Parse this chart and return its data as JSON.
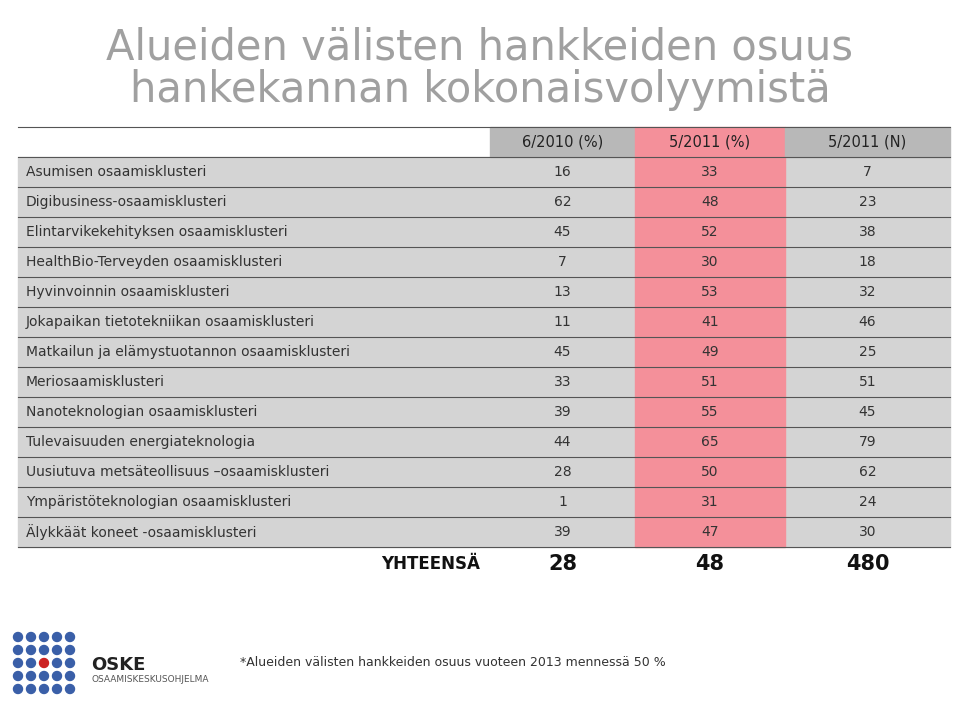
{
  "title_line1": "Alueiden välisten hankkeiden osuus",
  "title_line2": "hankekannan kokonaisvolyymistä",
  "col_headers": [
    "6/2010 (%)",
    "5/2011 (%)",
    "5/2011 (N)"
  ],
  "rows": [
    [
      "Asumisen osaamisklusteri",
      16,
      33,
      7
    ],
    [
      "Digibusiness-osaamisklusteri",
      62,
      48,
      23
    ],
    [
      "Elintarvikekehityksen osaamisklusteri",
      45,
      52,
      38
    ],
    [
      "HealthBio-Terveyden osaamisklusteri",
      7,
      30,
      18
    ],
    [
      "Hyvinvoinnin osaamisklusteri",
      13,
      53,
      32
    ],
    [
      "Jokapaikan tietotekniikan osaamisklusteri",
      11,
      41,
      46
    ],
    [
      "Matkailun ja elämystuotannon osaamisklusteri",
      45,
      49,
      25
    ],
    [
      "Meriosaamisklusteri",
      33,
      51,
      51
    ],
    [
      "Nanoteknologian osaamisklusteri",
      39,
      55,
      45
    ],
    [
      "Tulevaisuuden energiateknologia",
      44,
      65,
      79
    ],
    [
      "Uusiutuva metsäteollisuus –osaamisklusteri",
      28,
      50,
      62
    ],
    [
      "Ympäristöteknologian osaamisklusteri",
      1,
      31,
      24
    ],
    [
      "Älykkäät koneet -osaamisklusteri",
      39,
      47,
      30
    ]
  ],
  "footer_label": "YHTEENSÄ",
  "footer_values": [
    "28",
    "48",
    "480"
  ],
  "footnote": "*Alueiden välisten hankkeiden osuus vuoteen 2013 mennessä 50 %",
  "bg_color": "#ffffff",
  "title_color": "#a0a0a0",
  "row_bg": "#d4d4d4",
  "pink_bg": "#f4909a",
  "header_gray_bg": "#b8b8b8",
  "header_pink_bg": "#f4909a",
  "line_color": "#555555",
  "text_color": "#333333",
  "footer_text_color": "#111111"
}
